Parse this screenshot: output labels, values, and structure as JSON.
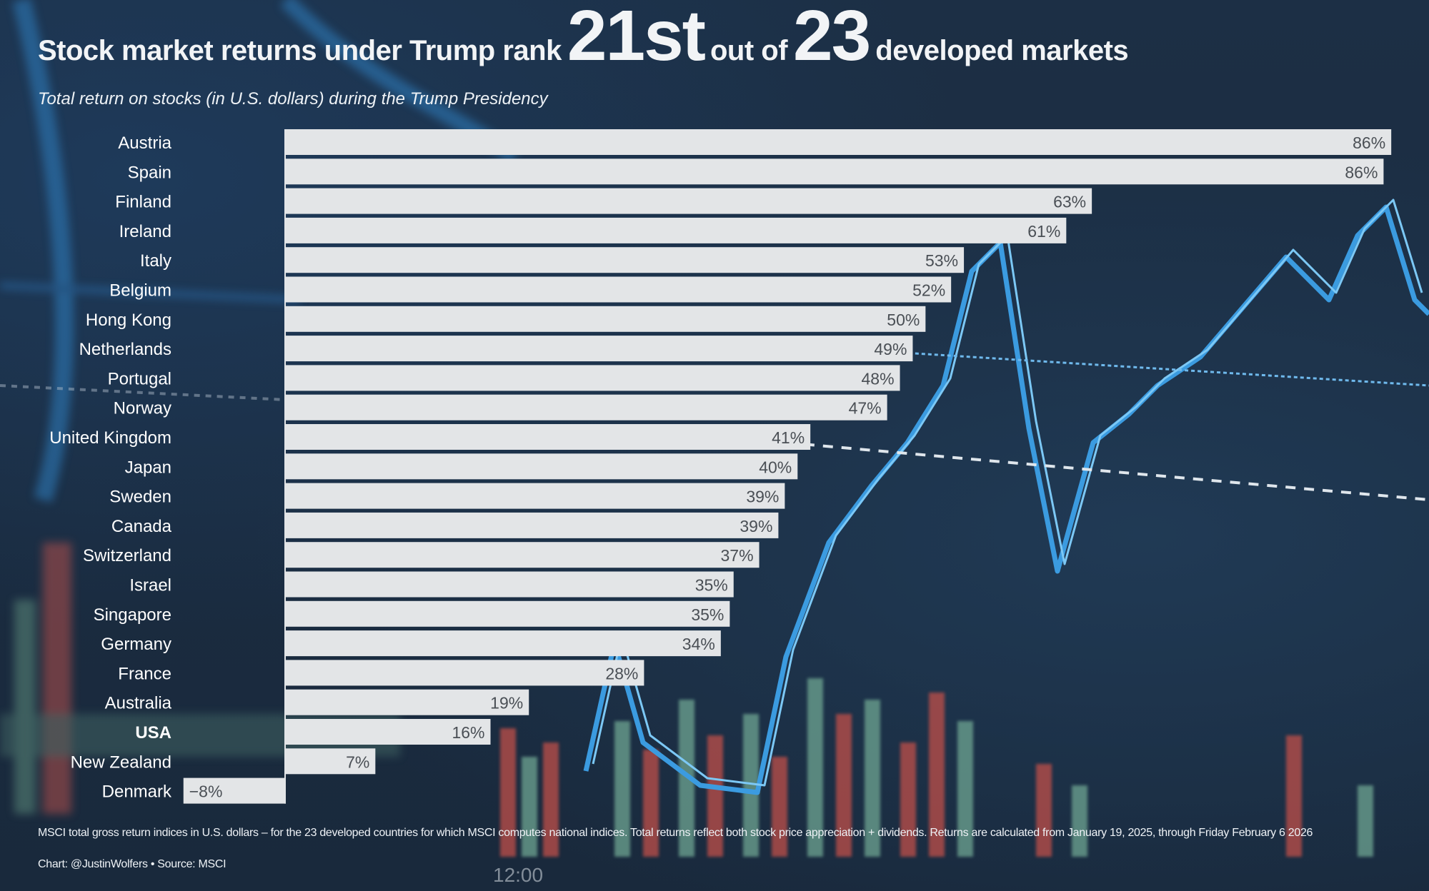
{
  "title": {
    "prefix": "Stock market returns under Trump rank",
    "rank": "21",
    "rank_suffix": "st",
    "middle": "out of",
    "total": "23",
    "suffix": "developed markets"
  },
  "subtitle": "Total return on stocks (in U.S. dollars) during the Trump Presidency",
  "footnote": "MSCI total gross return indices in U.S. dollars – for the 23 developed countries for which MSCI computes national indices. Total returns reflect both stock price appreciation + dividends. Returns are calculated from January 19, 2025, through Friday February 6 2026",
  "credit": "Chart: @JustinWolfers • Source: MSCI",
  "colors": {
    "background": "#1b2e44",
    "bar": "#e3e5e7",
    "bar_label": "#4a4f55",
    "category_label": "#ffffff"
  },
  "chart_data": {
    "type": "bar",
    "orientation": "horizontal",
    "title": "Stock market returns under Trump rank 21st out of 23 developed markets",
    "subtitle": "Total return on stocks (in U.S. dollars) during the Trump Presidency",
    "xlabel": "",
    "ylabel": "",
    "unit": "%",
    "xlim": [
      -8,
      86
    ],
    "grid": false,
    "highlight": "USA",
    "categories": [
      "Austria",
      "Spain",
      "Finland",
      "Ireland",
      "Italy",
      "Belgium",
      "Hong Kong",
      "Netherlands",
      "Portugal",
      "Norway",
      "United Kingdom",
      "Japan",
      "Sweden",
      "Canada",
      "Switzerland",
      "Israel",
      "Singapore",
      "Germany",
      "France",
      "Australia",
      "USA",
      "New Zealand",
      "Denmark"
    ],
    "values": [
      86.4,
      85.8,
      63,
      61,
      53,
      52,
      50,
      49,
      48,
      47,
      41,
      40,
      39,
      38.5,
      37,
      35,
      34.7,
      34,
      28,
      19,
      16,
      7,
      -8
    ],
    "labels": [
      "86%",
      "86%",
      "63%",
      "61%",
      "53%",
      "52%",
      "50%",
      "49%",
      "48%",
      "47%",
      "41%",
      "40%",
      "39%",
      "39%",
      "37%",
      "35%",
      "35%",
      "34%",
      "28%",
      "19%",
      "16%",
      "7%",
      "−8%"
    ]
  }
}
